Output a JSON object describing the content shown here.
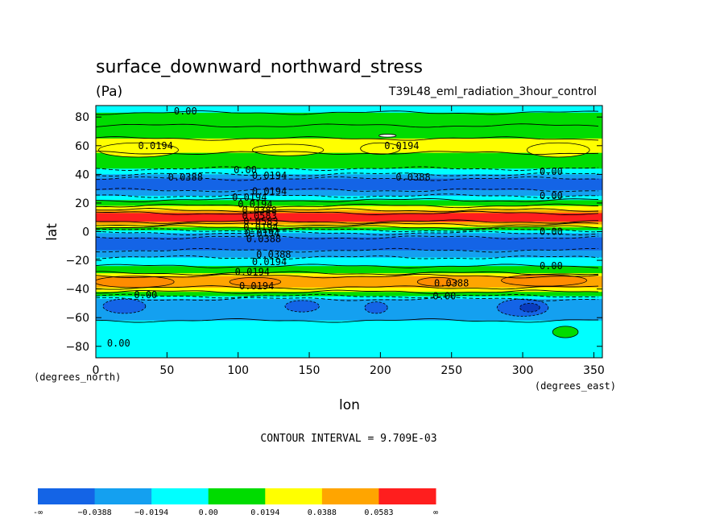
{
  "chart_data": {
    "type": "heatmap",
    "title": "surface_downward_northward_stress",
    "units": "(Pa)",
    "subtitle": "T39L48_eml_radiation_3hour_control",
    "xlabel": "lon",
    "ylabel": "lat",
    "x_units": "(degrees_east)",
    "y_units": "(degrees_north)",
    "xlim": [
      0,
      356
    ],
    "ylim": [
      -88,
      88
    ],
    "x_ticks": [
      "0",
      "50",
      "100",
      "150",
      "200",
      "250",
      "300",
      "350"
    ],
    "x_tick_values": [
      0,
      50,
      100,
      150,
      200,
      250,
      300,
      350
    ],
    "y_ticks": [
      "80",
      "60",
      "40",
      "20",
      "0",
      "−20",
      "−40",
      "−60",
      "−80"
    ],
    "y_tick_values": [
      80,
      60,
      40,
      20,
      0,
      -20,
      -40,
      -60,
      -80
    ],
    "contour_interval": "CONTOUR INTERVAL = 9.709E-03",
    "levels": [
      "-∞",
      "−0.0388",
      "−0.0194",
      "0.00",
      "0.0194",
      "0.0388",
      "0.0583",
      "∞"
    ],
    "level_colors": [
      "#1464e6",
      "#14a0f0",
      "#00ffff",
      "#00dc00",
      "#ffff00",
      "#ffa500",
      "#ff1e1e"
    ],
    "bands": [
      {
        "lat_max": 88,
        "lat_min": 83,
        "color": "#00ffff"
      },
      {
        "lat_max": 83,
        "lat_min": 74,
        "color": "#00dc00"
      },
      {
        "lat_max": 74,
        "lat_min": 65,
        "color": "#00dc00"
      },
      {
        "lat_max": 65,
        "lat_min": 55,
        "color": "#ffff00"
      },
      {
        "lat_max": 55,
        "lat_min": 44,
        "color": "#00dc00"
      },
      {
        "lat_max": 44,
        "lat_min": 40,
        "color": "#00ffff"
      },
      {
        "lat_max": 40,
        "lat_min": 37,
        "color": "#14a0f0"
      },
      {
        "lat_max": 37,
        "lat_min": 29,
        "color": "#1464e6"
      },
      {
        "lat_max": 29,
        "lat_min": 25,
        "color": "#14a0f0"
      },
      {
        "lat_max": 25,
        "lat_min": 22,
        "color": "#00ffff"
      },
      {
        "lat_max": 22,
        "lat_min": 18,
        "color": "#00dc00"
      },
      {
        "lat_max": 18,
        "lat_min": 15,
        "color": "#ffff00"
      },
      {
        "lat_max": 15,
        "lat_min": 13,
        "color": "#ffa500"
      },
      {
        "lat_max": 13,
        "lat_min": 7,
        "color": "#ff1e1e"
      },
      {
        "lat_max": 7,
        "lat_min": 5,
        "color": "#ffa500"
      },
      {
        "lat_max": 5,
        "lat_min": 3,
        "color": "#ffff00"
      },
      {
        "lat_max": 3,
        "lat_min": 1,
        "color": "#00dc00"
      },
      {
        "lat_max": 1,
        "lat_min": -1,
        "color": "#00ffff"
      },
      {
        "lat_max": -1,
        "lat_min": -4,
        "color": "#14a0f0"
      },
      {
        "lat_max": -4,
        "lat_min": -13,
        "color": "#1464e6"
      },
      {
        "lat_max": -13,
        "lat_min": -18,
        "color": "#14a0f0"
      },
      {
        "lat_max": -18,
        "lat_min": -24,
        "color": "#00ffff"
      },
      {
        "lat_max": -24,
        "lat_min": -29,
        "color": "#00dc00"
      },
      {
        "lat_max": -29,
        "lat_min": -31,
        "color": "#ffff00"
      },
      {
        "lat_max": -31,
        "lat_min": -39,
        "color": "#ffa500"
      },
      {
        "lat_max": -39,
        "lat_min": -42,
        "color": "#ffff00"
      },
      {
        "lat_max": -42,
        "lat_min": -45,
        "color": "#00dc00"
      },
      {
        "lat_max": -45,
        "lat_min": -47,
        "color": "#00ffff"
      },
      {
        "lat_max": -47,
        "lat_min": -62,
        "color": "#14a0f0"
      },
      {
        "lat_max": -62,
        "lat_min": -88,
        "color": "#00ffff"
      }
    ],
    "blobs": [
      {
        "lon": 30,
        "lat": 57,
        "rlon": 28,
        "rlat": 5,
        "color": "#ffff00"
      },
      {
        "lon": 135,
        "lat": 57,
        "rlon": 25,
        "rlat": 4,
        "color": "#ffff00"
      },
      {
        "lon": 200,
        "lat": 58,
        "rlon": 14,
        "rlat": 4,
        "color": "#ffff00"
      },
      {
        "lon": 325,
        "lat": 57,
        "rlon": 22,
        "rlat": 5,
        "color": "#ffff00"
      },
      {
        "lon": 205,
        "lat": 67,
        "rlon": 6,
        "rlat": 1,
        "color": "#ffffff"
      },
      {
        "lon": 27,
        "lat": -35,
        "rlon": 28,
        "rlat": 4,
        "color": "#ff8c00"
      },
      {
        "lon": 112,
        "lat": -35,
        "rlon": 18,
        "rlat": 3,
        "color": "#ff8c00"
      },
      {
        "lon": 315,
        "lat": -34,
        "rlon": 30,
        "rlat": 4,
        "color": "#ff8c00"
      },
      {
        "lon": 240,
        "lat": -35,
        "rlon": 14,
        "rlat": 3,
        "color": "#ff8c00"
      },
      {
        "lon": 20,
        "lat": -52,
        "rlon": 15,
        "rlat": 5,
        "color": "#1464e6"
      },
      {
        "lon": 145,
        "lat": -52,
        "rlon": 12,
        "rlat": 4,
        "color": "#1464e6"
      },
      {
        "lon": 197,
        "lat": -53,
        "rlon": 8,
        "rlat": 4,
        "color": "#1464e6"
      },
      {
        "lon": 300,
        "lat": -53,
        "rlon": 18,
        "rlat": 6,
        "color": "#1464e6"
      },
      {
        "lon": 305,
        "lat": -53,
        "rlon": 7,
        "rlat": 3,
        "color": "#0a3cbe"
      },
      {
        "lon": 330,
        "lat": -70,
        "rlon": 9,
        "rlat": 4,
        "color": "#00dc00"
      }
    ],
    "contour_labels": [
      {
        "lon": 63,
        "lat": 84,
        "text": "0.00"
      },
      {
        "lon": 42,
        "lat": 60,
        "text": "0.0194"
      },
      {
        "lon": 215,
        "lat": 60,
        "text": "0.0194"
      },
      {
        "lon": 63,
        "lat": 38,
        "text": "0.0388"
      },
      {
        "lon": 105,
        "lat": 43,
        "text": "0.00"
      },
      {
        "lon": 122,
        "lat": 39,
        "text": "0.0194"
      },
      {
        "lon": 223,
        "lat": 38,
        "text": "0.0388"
      },
      {
        "lon": 320,
        "lat": 42,
        "text": "0.00"
      },
      {
        "lon": 320,
        "lat": 25,
        "text": "0.00"
      },
      {
        "lon": 122,
        "lat": 28,
        "text": "0.0194"
      },
      {
        "lon": 108,
        "lat": 24,
        "text": "0.0194"
      },
      {
        "lon": 112,
        "lat": 19,
        "text": "0.0194"
      },
      {
        "lon": 115,
        "lat": 15,
        "text": "0.0388"
      },
      {
        "lon": 115,
        "lat": 11,
        "text": "0.0583"
      },
      {
        "lon": 116,
        "lat": 7,
        "text": "0.0583"
      },
      {
        "lon": 116,
        "lat": 3,
        "text": "0.0194"
      },
      {
        "lon": 117,
        "lat": -1,
        "text": "0.0194"
      },
      {
        "lon": 118,
        "lat": -5,
        "text": "0.0388"
      },
      {
        "lon": 320,
        "lat": 0,
        "text": "0.00"
      },
      {
        "lon": 125,
        "lat": -16,
        "text": "0.0388"
      },
      {
        "lon": 122,
        "lat": -21,
        "text": "0.0194"
      },
      {
        "lon": 320,
        "lat": -24,
        "text": "0.00"
      },
      {
        "lon": 110,
        "lat": -28,
        "text": "0.0194"
      },
      {
        "lon": 250,
        "lat": -36,
        "text": "0.0388"
      },
      {
        "lon": 113,
        "lat": -38,
        "text": "0.0194"
      },
      {
        "lon": 35,
        "lat": -44,
        "text": "0.00"
      },
      {
        "lon": 245,
        "lat": -45,
        "text": "0.00"
      },
      {
        "lon": 16,
        "lat": -78,
        "text": "0.00"
      }
    ]
  }
}
